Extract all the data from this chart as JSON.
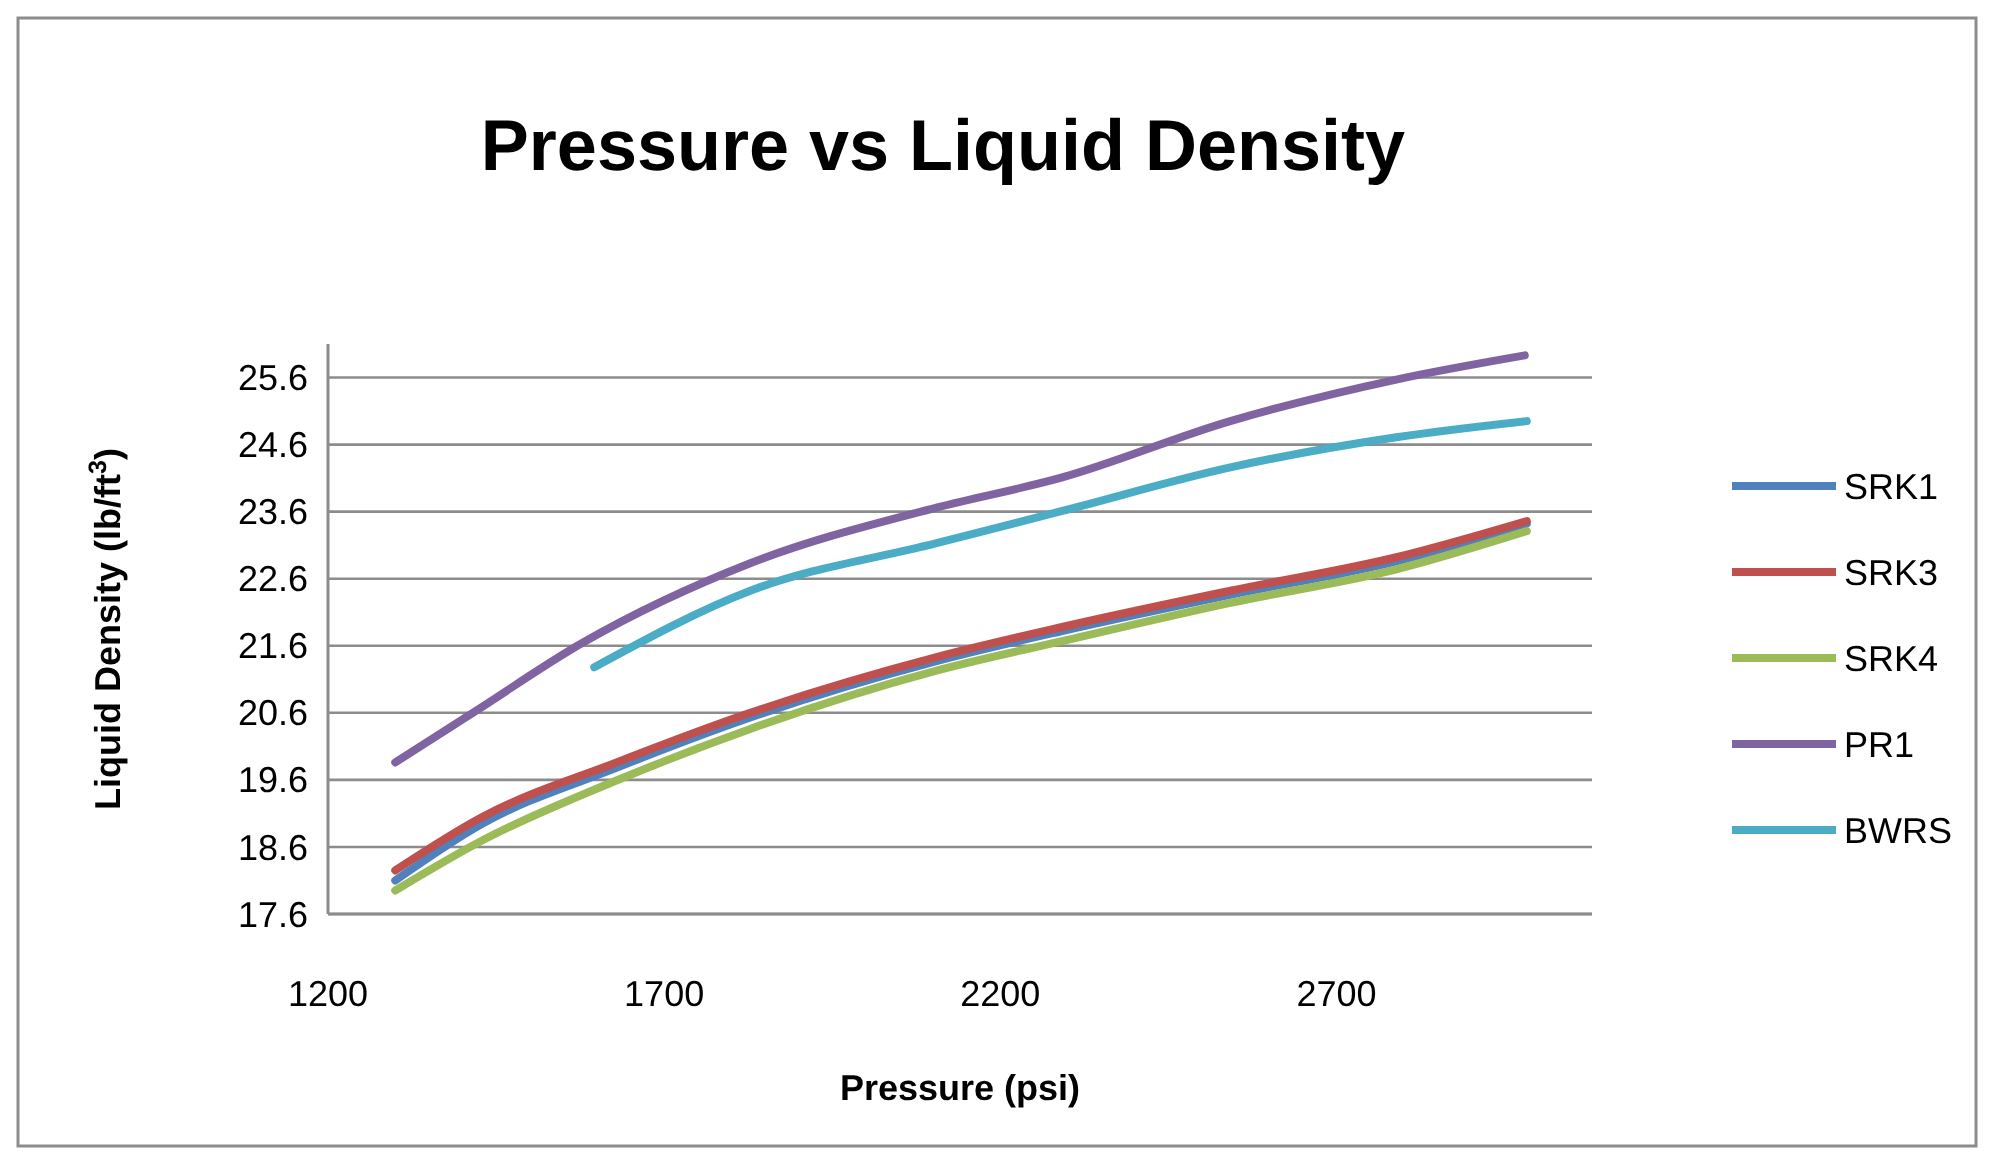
{
  "chart_data": {
    "type": "line",
    "title": "Pressure vs Liquid Density",
    "xlabel": "Pressure (psi)",
    "ylabel": "Liquid Density (lb/ft$^{3}$)",
    "xlim": [
      1200,
      3080
    ],
    "xticks": [
      1200,
      1700,
      2200,
      2700
    ],
    "ylim": [
      17.6,
      26.1
    ],
    "yticks": [
      17.6,
      18.6,
      19.6,
      20.6,
      21.6,
      22.6,
      23.6,
      24.6,
      25.6
    ],
    "grid": "y",
    "legend": "right",
    "marker": "none",
    "line_style": "solid",
    "series": [
      {
        "name": "SRK1",
        "color": "#4f81bd",
        "x": [
          1300,
          1430,
          1629,
          1828,
          2105,
          2292,
          2542,
          2789,
          2983
        ],
        "values": [
          18.1,
          18.95,
          19.78,
          20.53,
          21.37,
          21.82,
          22.36,
          22.86,
          23.42
        ]
      },
      {
        "name": "SRK3",
        "color": "#c0504d",
        "x": [
          1300,
          1430,
          1629,
          1828,
          2105,
          2292,
          2542,
          2789,
          2983
        ],
        "values": [
          18.25,
          19.05,
          19.86,
          20.6,
          21.43,
          21.88,
          22.42,
          22.92,
          23.46
        ]
      },
      {
        "name": "SRK4",
        "color": "#9bbb59",
        "x": [
          1300,
          1430,
          1629,
          1828,
          2105,
          2292,
          2542,
          2789,
          2983
        ],
        "values": [
          17.95,
          18.7,
          19.59,
          20.36,
          21.23,
          21.67,
          22.24,
          22.74,
          23.31
        ]
      },
      {
        "name": "PR1",
        "color": "#8064a2",
        "x": [
          1300,
          1420,
          1578,
          1828,
          2105,
          2292,
          2542,
          2789,
          2980
        ],
        "values": [
          19.86,
          20.63,
          21.64,
          22.83,
          23.66,
          24.11,
          24.95,
          25.57,
          25.93
        ]
      },
      {
        "name": "BWRS",
        "color": "#4bacc6",
        "x": [
          1596,
          1828,
          2105,
          2292,
          2542,
          2789,
          2983
        ],
        "values": [
          21.28,
          22.42,
          23.13,
          23.61,
          24.26,
          24.71,
          24.95
        ]
      }
    ]
  }
}
